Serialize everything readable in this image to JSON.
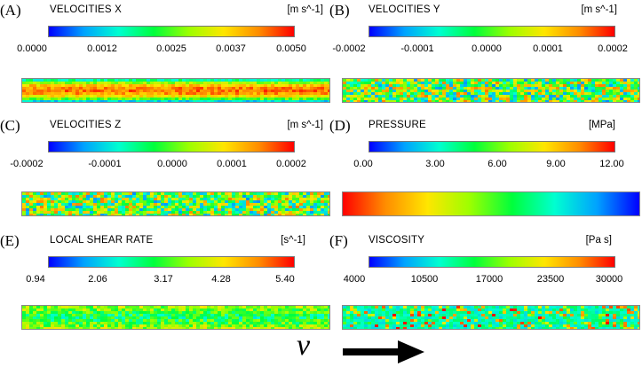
{
  "panels": [
    {
      "letter": "(A)",
      "title": "VELOCITIES X",
      "unit": "[m s^-1]",
      "ticks": [
        "0.0000",
        "0.0012",
        "0.0025",
        "0.0037",
        "0.0050"
      ],
      "field": "vx"
    },
    {
      "letter": "(B)",
      "title": "VELOCITIES Y",
      "unit": "[m s^-1]",
      "ticks": [
        "-0.0002",
        "-0.0001",
        "0.0000",
        "0.0001",
        "0.0002"
      ],
      "field": "noise"
    },
    {
      "letter": "(C)",
      "title": "VELOCITIES Z",
      "unit": "[m s^-1]",
      "ticks": [
        "-0.0002",
        "-0.0001",
        "0.0000",
        "0.0001",
        "0.0002"
      ],
      "field": "noise"
    },
    {
      "letter": "(D)",
      "title": "PRESSURE",
      "unit": "[MPa]",
      "ticks": [
        "0.00",
        "3.00",
        "6.00",
        "9.00",
        "12.00"
      ],
      "field": "pressure"
    },
    {
      "letter": "(E)",
      "title": "LOCAL SHEAR RATE",
      "unit": "[s^-1]",
      "ticks": [
        "0.94",
        "2.06",
        "3.17",
        "4.28",
        "5.40"
      ],
      "field": "shear"
    },
    {
      "letter": "(F)",
      "title": "VISCOSITY",
      "unit": "[Pa s]",
      "ticks": [
        "4000",
        "10500",
        "17000",
        "23500",
        "30000"
      ],
      "field": "visc"
    }
  ],
  "flow_symbol": "ν",
  "colormap": [
    "#0000ff",
    "#00a2ff",
    "#00ffd0",
    "#00ff3c",
    "#9cff00",
    "#ffe600",
    "#ff8c00",
    "#ff0000"
  ]
}
